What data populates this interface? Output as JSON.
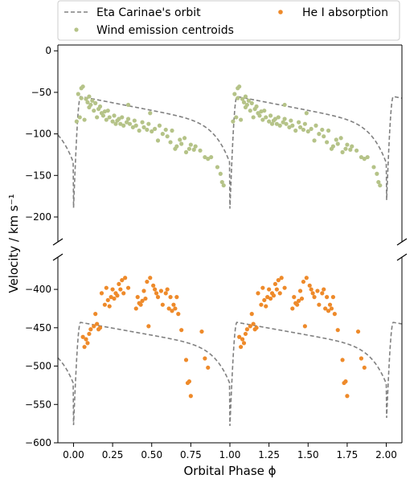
{
  "chart_data": {
    "type": "scatter",
    "xlabel": "Orbital Phase ϕ",
    "ylabel": "Velocity / km s⁻¹",
    "xlim": [
      -0.1,
      2.1
    ],
    "x_ticks": [
      0.0,
      0.25,
      0.5,
      0.75,
      1.0,
      1.25,
      1.5,
      1.75,
      2.0
    ],
    "x_tick_labels": [
      "0.00",
      "0.25",
      "0.50",
      "0.75",
      "1.00",
      "1.25",
      "1.50",
      "1.75",
      "2.00"
    ],
    "broken_y_axis": true,
    "legend_position": "top (above plot, two columns)",
    "panels": [
      {
        "name": "top",
        "ylim": [
          -230,
          7
        ],
        "y_ticks": [
          0,
          -50,
          -100,
          -150,
          -200
        ],
        "y_tick_labels": [
          "0",
          "−50",
          "−100",
          "−150",
          "−200"
        ],
        "orbit_curve": {
          "peak": -55,
          "trough": -190,
          "pre_periastron": -160,
          "decline": 45,
          "plateau_slope": 35
        },
        "series_points": [
          [
            0.02,
            -85
          ],
          [
            0.03,
            -52
          ],
          [
            0.04,
            -80
          ],
          [
            0.05,
            -57
          ],
          [
            0.05,
            -45
          ],
          [
            0.06,
            -43
          ],
          [
            0.07,
            -83
          ],
          [
            0.08,
            -58
          ],
          [
            0.09,
            -62
          ],
          [
            0.1,
            -55
          ],
          [
            0.1,
            -68
          ],
          [
            0.11,
            -65
          ],
          [
            0.12,
            -60
          ],
          [
            0.13,
            -72
          ],
          [
            0.14,
            -63
          ],
          [
            0.15,
            -80
          ],
          [
            0.16,
            -70
          ],
          [
            0.17,
            -67
          ],
          [
            0.18,
            -75
          ],
          [
            0.19,
            -78
          ],
          [
            0.2,
            -73
          ],
          [
            0.21,
            -83
          ],
          [
            0.22,
            -72
          ],
          [
            0.23,
            -80
          ],
          [
            0.25,
            -85
          ],
          [
            0.26,
            -78
          ],
          [
            0.27,
            -88
          ],
          [
            0.28,
            -84
          ],
          [
            0.29,
            -82
          ],
          [
            0.3,
            -88
          ],
          [
            0.31,
            -80
          ],
          [
            0.32,
            -90
          ],
          [
            0.34,
            -86
          ],
          [
            0.35,
            -82
          ],
          [
            0.36,
            -88
          ],
          [
            0.38,
            -92
          ],
          [
            0.39,
            -84
          ],
          [
            0.4,
            -90
          ],
          [
            0.42,
            -96
          ],
          [
            0.44,
            -86
          ],
          [
            0.45,
            -92
          ],
          [
            0.47,
            -95
          ],
          [
            0.48,
            -88
          ],
          [
            0.5,
            -97
          ],
          [
            0.52,
            -94
          ],
          [
            0.54,
            -108
          ],
          [
            0.55,
            -90
          ],
          [
            0.57,
            -100
          ],
          [
            0.59,
            -95
          ],
          [
            0.6,
            -103
          ],
          [
            0.62,
            -110
          ],
          [
            0.63,
            -96
          ],
          [
            0.65,
            -118
          ],
          [
            0.66,
            -115
          ],
          [
            0.68,
            -107
          ],
          [
            0.69,
            -112
          ],
          [
            0.71,
            -105
          ],
          [
            0.72,
            -122
          ],
          [
            0.74,
            -118
          ],
          [
            0.75,
            -113
          ],
          [
            0.77,
            -119
          ],
          [
            0.78,
            -115
          ],
          [
            0.81,
            -120
          ],
          [
            0.84,
            -128
          ],
          [
            0.86,
            -130
          ],
          [
            0.88,
            -128
          ],
          [
            0.92,
            -140
          ],
          [
            0.94,
            -148
          ],
          [
            0.95,
            -158
          ],
          [
            0.96,
            -162
          ],
          [
            0.49,
            -75
          ],
          [
            0.35,
            -65
          ]
        ]
      },
      {
        "name": "bottom",
        "ylim": [
          -600,
          -358
        ],
        "y_ticks": [
          -400,
          -450,
          -500,
          -550,
          -600
        ],
        "y_tick_labels": [
          "−400",
          "−450",
          "−500",
          "−550",
          "−600"
        ],
        "orbit_curve": {
          "peak": -443,
          "trough": -578,
          "pre_periastron": -548,
          "decline": 45,
          "plateau_slope": 35
        },
        "series_points": [
          [
            0.06,
            -462
          ],
          [
            0.07,
            -475
          ],
          [
            0.08,
            -465
          ],
          [
            0.09,
            -470
          ],
          [
            0.1,
            -458
          ],
          [
            0.11,
            -452
          ],
          [
            0.13,
            -448
          ],
          [
            0.14,
            -432
          ],
          [
            0.15,
            -445
          ],
          [
            0.16,
            -452
          ],
          [
            0.17,
            -450
          ],
          [
            0.18,
            -405
          ],
          [
            0.2,
            -420
          ],
          [
            0.21,
            -398
          ],
          [
            0.22,
            -414
          ],
          [
            0.23,
            -422
          ],
          [
            0.24,
            -410
          ],
          [
            0.25,
            -400
          ],
          [
            0.26,
            -412
          ],
          [
            0.27,
            -405
          ],
          [
            0.28,
            -408
          ],
          [
            0.29,
            -393
          ],
          [
            0.3,
            -400
          ],
          [
            0.31,
            -388
          ],
          [
            0.32,
            -405
          ],
          [
            0.33,
            -385
          ],
          [
            0.35,
            -398
          ],
          [
            0.4,
            -425
          ],
          [
            0.41,
            -410
          ],
          [
            0.42,
            -418
          ],
          [
            0.43,
            -420
          ],
          [
            0.44,
            -415
          ],
          [
            0.45,
            -402
          ],
          [
            0.46,
            -412
          ],
          [
            0.47,
            -390
          ],
          [
            0.48,
            -448
          ],
          [
            0.49,
            -385
          ],
          [
            0.51,
            -395
          ],
          [
            0.52,
            -400
          ],
          [
            0.53,
            -405
          ],
          [
            0.54,
            -410
          ],
          [
            0.56,
            -402
          ],
          [
            0.57,
            -420
          ],
          [
            0.59,
            -405
          ],
          [
            0.6,
            -400
          ],
          [
            0.61,
            -425
          ],
          [
            0.62,
            -410
          ],
          [
            0.63,
            -428
          ],
          [
            0.64,
            -420
          ],
          [
            0.65,
            -425
          ],
          [
            0.66,
            -410
          ],
          [
            0.67,
            -432
          ],
          [
            0.69,
            -453
          ],
          [
            0.72,
            -492
          ],
          [
            0.73,
            -522
          ],
          [
            0.74,
            -520
          ],
          [
            0.75,
            -539
          ],
          [
            0.82,
            -455
          ],
          [
            0.84,
            -490
          ],
          [
            0.86,
            -502
          ]
        ]
      }
    ],
    "series": [
      {
        "name": "Eta Carinae's orbit",
        "kind": "dashed-line",
        "color": "#808080"
      },
      {
        "name": "Wind emission centroids",
        "kind": "points",
        "panel": "top",
        "color": "#b5c388"
      },
      {
        "name": "He I absorption",
        "kind": "points",
        "panel": "bottom",
        "color": "#ee8a2a"
      }
    ]
  }
}
